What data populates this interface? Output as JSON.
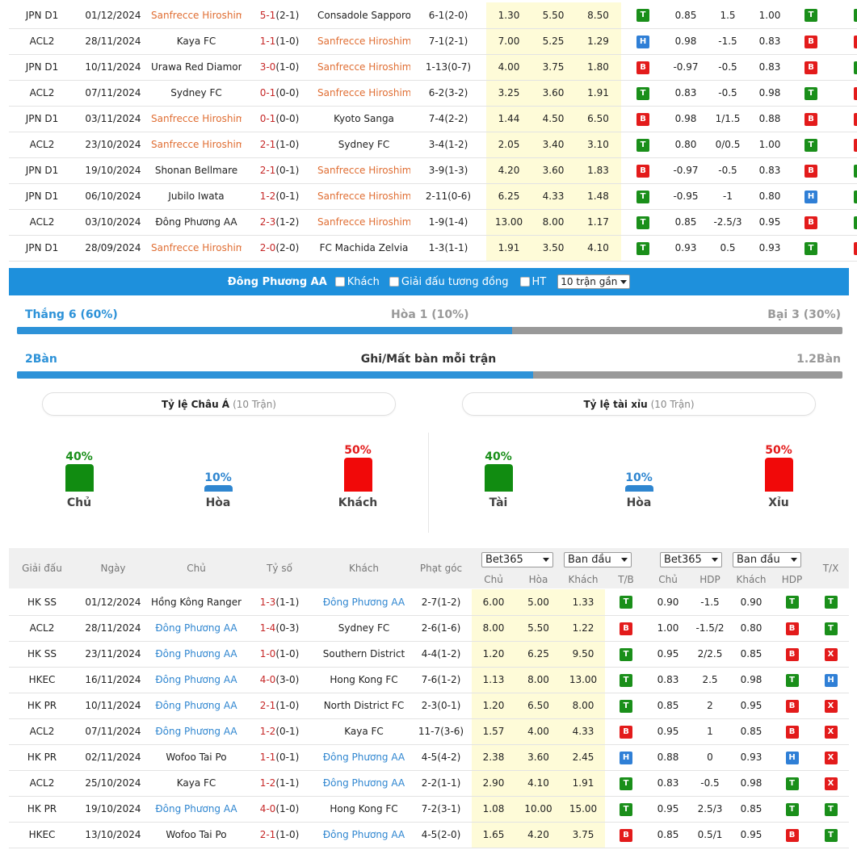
{
  "top_matches": [
    {
      "league": "JPN D1",
      "date": "01/12/2024",
      "home": "Sanfrecce Hiroshima",
      "home_hl": true,
      "score": "5-1",
      "ht": "(2-1)",
      "away": "Consadole Sapporo",
      "away_hl": false,
      "corners": "6-1(2-0)",
      "o1": "1.30",
      "ox": "5.50",
      "o2": "8.50",
      "tb": "T",
      "h1": "0.85",
      "hdp": "1.5",
      "h2": "1.00",
      "r1": "T",
      "r2": "T"
    },
    {
      "league": "ACL2",
      "date": "28/11/2024",
      "home": "Kaya FC",
      "home_hl": false,
      "score": "1-1",
      "ht": "(1-0)",
      "away": "Sanfrecce Hiroshima",
      "away_hl": true,
      "corners": "7-1(2-1)",
      "o1": "7.00",
      "ox": "5.25",
      "o2": "1.29",
      "tb": "H",
      "h1": "0.98",
      "hdp": "-1.5",
      "h2": "0.83",
      "r1": "B",
      "r2": "X"
    },
    {
      "league": "JPN D1",
      "date": "10/11/2024",
      "home": "Urawa Red Diamonds",
      "home_hl": false,
      "score": "3-0",
      "ht": "(1-0)",
      "away": "Sanfrecce Hiroshima",
      "away_hl": true,
      "corners": "1-13(0-7)",
      "o1": "4.00",
      "ox": "3.75",
      "o2": "1.80",
      "tb": "B",
      "h1": "-0.97",
      "hdp": "-0.5",
      "h2": "0.83",
      "r1": "B",
      "r2": "T"
    },
    {
      "league": "ACL2",
      "date": "07/11/2024",
      "home": "Sydney FC",
      "home_hl": false,
      "score": "0-1",
      "ht": "(0-0)",
      "away": "Sanfrecce Hiroshima",
      "away_hl": true,
      "corners": "6-2(3-2)",
      "o1": "3.25",
      "ox": "3.60",
      "o2": "1.91",
      "tb": "T",
      "h1": "0.83",
      "hdp": "-0.5",
      "h2": "0.98",
      "r1": "T",
      "r2": "X"
    },
    {
      "league": "JPN D1",
      "date": "03/11/2024",
      "home": "Sanfrecce Hiroshima",
      "home_hl": true,
      "score": "0-1",
      "ht": "(0-0)",
      "away": "Kyoto Sanga",
      "away_hl": false,
      "corners": "7-4(2-2)",
      "o1": "1.44",
      "ox": "4.50",
      "o2": "6.50",
      "tb": "B",
      "h1": "0.98",
      "hdp": "1/1.5",
      "h2": "0.88",
      "r1": "B",
      "r2": "X"
    },
    {
      "league": "ACL2",
      "date": "23/10/2024",
      "home": "Sanfrecce Hiroshima",
      "home_hl": true,
      "score": "2-1",
      "ht": "(1-0)",
      "away": "Sydney FC",
      "away_hl": false,
      "corners": "3-4(1-2)",
      "o1": "2.05",
      "ox": "3.40",
      "o2": "3.10",
      "tb": "T",
      "h1": "0.80",
      "hdp": "0/0.5",
      "h2": "1.00",
      "r1": "T",
      "r2": "X"
    },
    {
      "league": "JPN D1",
      "date": "19/10/2024",
      "home": "Shonan Bellmare",
      "home_hl": false,
      "score": "2-1",
      "ht": "(0-1)",
      "away": "Sanfrecce Hiroshima",
      "away_hl": true,
      "corners": "3-9(1-3)",
      "o1": "4.20",
      "ox": "3.60",
      "o2": "1.83",
      "tb": "B",
      "h1": "-0.97",
      "hdp": "-0.5",
      "h2": "0.83",
      "r1": "B",
      "r2": "T"
    },
    {
      "league": "JPN D1",
      "date": "06/10/2024",
      "home": "Jubilo Iwata",
      "home_hl": false,
      "score": "1-2",
      "ht": "(0-1)",
      "away": "Sanfrecce Hiroshima",
      "away_hl": true,
      "corners": "2-11(0-6)",
      "o1": "6.25",
      "ox": "4.33",
      "o2": "1.48",
      "tb": "T",
      "h1": "-0.95",
      "hdp": "-1",
      "h2": "0.80",
      "r1": "H",
      "r2": "T"
    },
    {
      "league": "ACL2",
      "date": "03/10/2024",
      "home": "Đông Phương AA",
      "home_hl": false,
      "score": "2-3",
      "ht": "(1-2)",
      "away": "Sanfrecce Hiroshima",
      "away_hl": true,
      "corners": "1-9(1-4)",
      "o1": "13.00",
      "ox": "8.00",
      "o2": "1.17",
      "tb": "T",
      "h1": "0.85",
      "hdp": "-2.5/3",
      "h2": "0.95",
      "r1": "B",
      "r2": "T"
    },
    {
      "league": "JPN D1",
      "date": "28/09/2024",
      "home": "Sanfrecce Hiroshima",
      "home_hl": true,
      "score": "2-0",
      "ht": "(2-0)",
      "away": "FC Machida Zelvia",
      "away_hl": false,
      "corners": "1-3(1-1)",
      "o1": "1.91",
      "ox": "3.50",
      "o2": "4.10",
      "tb": "T",
      "h1": "0.93",
      "hdp": "0.5",
      "h2": "0.93",
      "r1": "T",
      "r2": "X"
    }
  ],
  "filter": {
    "team": "Đông Phương AA",
    "away_label": "Khách",
    "same_league_label": "Giải đấu tương đồng",
    "ht_label": "HT",
    "recent_select": "10 trận gần"
  },
  "record": {
    "win": "Thắng 6 (60%)",
    "draw": "Hòa 1 (10%)",
    "loss": "Bại 3 (30%)",
    "win_fraction": 0.6
  },
  "goals": {
    "scored": "2Bàn",
    "title": "Ghi/Mất bàn mỗi trận",
    "conceded": "1.2Bàn",
    "fraction": 0.625
  },
  "asian": {
    "title": "Tỷ lệ Châu Á",
    "sub": "(10 Trận)",
    "items": [
      {
        "pct": "40%",
        "label": "Chủ",
        "value": 40
      },
      {
        "pct": "10%",
        "label": "Hòa",
        "value": 10
      },
      {
        "pct": "50%",
        "label": "Khách",
        "value": 50
      }
    ]
  },
  "ou": {
    "title": "Tỷ lệ tài xỉu",
    "sub": "(10 Trận)",
    "items": [
      {
        "pct": "40%",
        "label": "Tài",
        "value": 40
      },
      {
        "pct": "10%",
        "label": "Hòa",
        "value": 10
      },
      {
        "pct": "50%",
        "label": "Xỉu",
        "value": 50
      }
    ]
  },
  "header": {
    "league": "Giải đấu",
    "date": "Ngày",
    "home": "Chủ",
    "score": "Tỷ số",
    "away": "Khách",
    "corners": "Phạt góc",
    "sel1": "Bet365",
    "sel2": "Ban đầu",
    "sel3": "Bet365",
    "sel4": "Ban đầu",
    "tx": "T/X",
    "c_home": "Chủ",
    "c_draw": "Hòa",
    "c_away": "Khách",
    "c_tb": "T/B",
    "c_home2": "Chủ",
    "c_hdp": "HDP",
    "c_away2": "Khách",
    "c_hdp2": "HDP"
  },
  "bottom_matches": [
    {
      "league": "HK SS",
      "date": "01/12/2024",
      "home": "Hồng Kông Rangers FC",
      "home_hl": false,
      "score": "1-3",
      "ht": "(1-1)",
      "away": "Đông Phương AA",
      "away_hl": true,
      "corners": "2-7(1-2)",
      "o1": "6.00",
      "ox": "5.00",
      "o2": "1.33",
      "tb": "T",
      "h1": "0.90",
      "hdp": "-1.5",
      "h2": "0.90",
      "r1": "T",
      "r2": "T"
    },
    {
      "league": "ACL2",
      "date": "28/11/2024",
      "home": "Đông Phương AA",
      "home_hl": true,
      "score": "1-4",
      "ht": "(0-3)",
      "away": "Sydney FC",
      "away_hl": false,
      "corners": "2-6(1-6)",
      "o1": "8.00",
      "ox": "5.50",
      "o2": "1.22",
      "tb": "B",
      "h1": "1.00",
      "hdp": "-1.5/2",
      "h2": "0.80",
      "r1": "B",
      "r2": "T"
    },
    {
      "league": "HK SS",
      "date": "23/11/2024",
      "home": "Đông Phương AA",
      "home_hl": true,
      "score": "1-0",
      "ht": "(1-0)",
      "away": "Southern District",
      "away_hl": false,
      "corners": "4-4(1-2)",
      "o1": "1.20",
      "ox": "6.25",
      "o2": "9.50",
      "tb": "T",
      "h1": "0.95",
      "hdp": "2/2.5",
      "h2": "0.85",
      "r1": "B",
      "r2": "X"
    },
    {
      "league": "HKEC",
      "date": "16/11/2024",
      "home": "Đông Phương AA",
      "home_hl": true,
      "score": "4-0",
      "ht": "(3-0)",
      "away": "Hong Kong FC",
      "away_hl": false,
      "corners": "7-6(1-2)",
      "o1": "1.13",
      "ox": "8.00",
      "o2": "13.00",
      "tb": "T",
      "h1": "0.83",
      "hdp": "2.5",
      "h2": "0.98",
      "r1": "T",
      "r2": "H"
    },
    {
      "league": "HK PR",
      "date": "10/11/2024",
      "home": "Đông Phương AA",
      "home_hl": true,
      "score": "2-1",
      "ht": "(1-0)",
      "away": "North District FC",
      "away_hl": false,
      "corners": "2-3(0-1)",
      "o1": "1.20",
      "ox": "6.50",
      "o2": "8.00",
      "tb": "T",
      "h1": "0.85",
      "hdp": "2",
      "h2": "0.95",
      "r1": "B",
      "r2": "X"
    },
    {
      "league": "ACL2",
      "date": "07/11/2024",
      "home": "Đông Phương AA",
      "home_hl": true,
      "score": "1-2",
      "ht": "(0-1)",
      "away": "Kaya FC",
      "away_hl": false,
      "corners": "11-7(3-6)",
      "o1": "1.57",
      "ox": "4.00",
      "o2": "4.33",
      "tb": "B",
      "h1": "0.95",
      "hdp": "1",
      "h2": "0.85",
      "r1": "B",
      "r2": "X"
    },
    {
      "league": "HK PR",
      "date": "02/11/2024",
      "home": "Wofoo Tai Po",
      "home_hl": false,
      "score": "1-1",
      "ht": "(0-1)",
      "away": "Đông Phương AA",
      "away_hl": true,
      "corners": "4-5(4-2)",
      "o1": "2.38",
      "ox": "3.60",
      "o2": "2.45",
      "tb": "H",
      "h1": "0.88",
      "hdp": "0",
      "h2": "0.93",
      "r1": "H",
      "r2": "X"
    },
    {
      "league": "ACL2",
      "date": "25/10/2024",
      "home": "Kaya FC",
      "home_hl": false,
      "score": "1-2",
      "ht": "(1-1)",
      "away": "Đông Phương AA",
      "away_hl": true,
      "corners": "2-2(1-1)",
      "o1": "2.90",
      "ox": "4.10",
      "o2": "1.91",
      "tb": "T",
      "h1": "0.83",
      "hdp": "-0.5",
      "h2": "0.98",
      "r1": "T",
      "r2": "X"
    },
    {
      "league": "HK PR",
      "date": "19/10/2024",
      "home": "Đông Phương AA",
      "home_hl": true,
      "score": "4-0",
      "ht": "(1-0)",
      "away": "Hong Kong FC",
      "away_hl": false,
      "corners": "7-2(3-1)",
      "o1": "1.08",
      "ox": "10.00",
      "o2": "15.00",
      "tb": "T",
      "h1": "0.95",
      "hdp": "2.5/3",
      "h2": "0.85",
      "r1": "T",
      "r2": "T"
    },
    {
      "league": "HKEC",
      "date": "13/10/2024",
      "home": "Wofoo Tai Po",
      "home_hl": false,
      "score": "2-1",
      "ht": "(1-0)",
      "away": "Đông Phương AA",
      "away_hl": true,
      "corners": "4-5(2-0)",
      "o1": "1.65",
      "ox": "4.20",
      "o2": "3.75",
      "tb": "B",
      "h1": "0.85",
      "hdp": "0.5/1",
      "h2": "0.95",
      "r1": "B",
      "r2": "T"
    }
  ],
  "colors": {
    "highlight_top": "#e06e33",
    "highlight_bottom": "#2f86d0",
    "bar_blue": "#1e90dc",
    "odds_bg": "#fefbd8"
  }
}
